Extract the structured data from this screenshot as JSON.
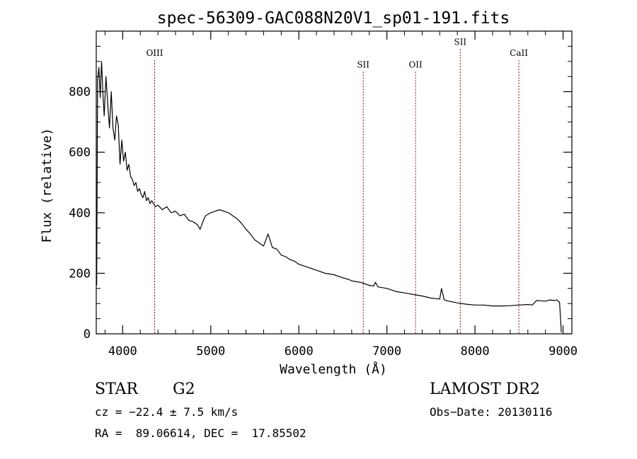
{
  "chart_data": {
    "type": "line",
    "title": "spec-56309-GAC088N20V1_sp01-191.fits",
    "xlabel": "Wavelength (Å)",
    "ylabel": "Flux (relative)",
    "xlim": [
      3700,
      9100
    ],
    "ylim": [
      0,
      1000
    ],
    "xticks": [
      4000,
      5000,
      6000,
      7000,
      8000,
      9000
    ],
    "yticks": [
      0,
      200,
      400,
      600,
      800
    ],
    "grid": false,
    "line_color": "#000000",
    "marker_color": "#8b0000",
    "series": [
      {
        "x": [
          3705,
          3715,
          3730,
          3745,
          3760,
          3775,
          3790,
          3810,
          3830,
          3850,
          3870,
          3890,
          3910,
          3930,
          3950,
          3970,
          3990,
          4010,
          4030,
          4050,
          4070,
          4090,
          4110,
          4130,
          4150,
          4170,
          4190,
          4210,
          4230,
          4250,
          4270,
          4290,
          4310,
          4330,
          4350,
          4370,
          4400,
          4450,
          4500,
          4550,
          4600,
          4650,
          4700,
          4750,
          4800,
          4850,
          4880,
          4910,
          4940,
          4970,
          5000,
          5050,
          5100,
          5150,
          5200,
          5250,
          5300,
          5350,
          5400,
          5450,
          5500,
          5550,
          5600,
          5650,
          5700,
          5750,
          5800,
          5850,
          5900,
          5950,
          6000,
          6100,
          6200,
          6300,
          6400,
          6500,
          6563,
          6600,
          6700,
          6800,
          6850,
          6870,
          6900,
          7000,
          7100,
          7200,
          7300,
          7400,
          7500,
          7600,
          7620,
          7650,
          7700,
          7800,
          7900,
          8000,
          8100,
          8200,
          8300,
          8400,
          8500,
          8600,
          8650,
          8700,
          8800,
          8850,
          8900,
          8930,
          8960,
          8980
        ],
        "y": [
          160,
          840,
          880,
          780,
          900,
          800,
          720,
          850,
          760,
          680,
          800,
          680,
          640,
          720,
          690,
          560,
          640,
          570,
          600,
          540,
          560,
          520,
          510,
          490,
          500,
          470,
          480,
          460,
          450,
          470,
          440,
          450,
          430,
          440,
          430,
          420,
          425,
          410,
          420,
          400,
          405,
          390,
          395,
          375,
          370,
          360,
          345,
          370,
          390,
          395,
          400,
          405,
          410,
          405,
          400,
          390,
          380,
          365,
          345,
          330,
          310,
          300,
          290,
          330,
          285,
          280,
          260,
          255,
          245,
          240,
          230,
          220,
          210,
          200,
          195,
          185,
          180,
          175,
          170,
          160,
          158,
          170,
          155,
          150,
          140,
          135,
          130,
          125,
          118,
          115,
          150,
          112,
          108,
          102,
          98,
          95,
          95,
          92,
          92,
          93,
          95,
          97,
          95,
          110,
          108,
          112,
          110,
          112,
          104,
          5
        ]
      }
    ],
    "line_markers": [
      {
        "label": "OIII",
        "x": 4363,
        "label_level": 918
      },
      {
        "label": "SII",
        "x": 6731,
        "label_level": 880
      },
      {
        "label": "OII",
        "x": 7325,
        "label_level": 880
      },
      {
        "label": "SII",
        "x": 7833,
        "label_level": 955
      },
      {
        "label": "CaII",
        "x": 8498,
        "label_level": 918
      }
    ]
  },
  "info": {
    "object_type": "STAR",
    "subclass": "G2",
    "survey": "LAMOST DR2",
    "cz": "cz = −22.4 ± 7.5 km/s",
    "obs_date": "Obs−Date: 20130116",
    "coords": "RA =  89.06614, DEC =  17.85502"
  }
}
